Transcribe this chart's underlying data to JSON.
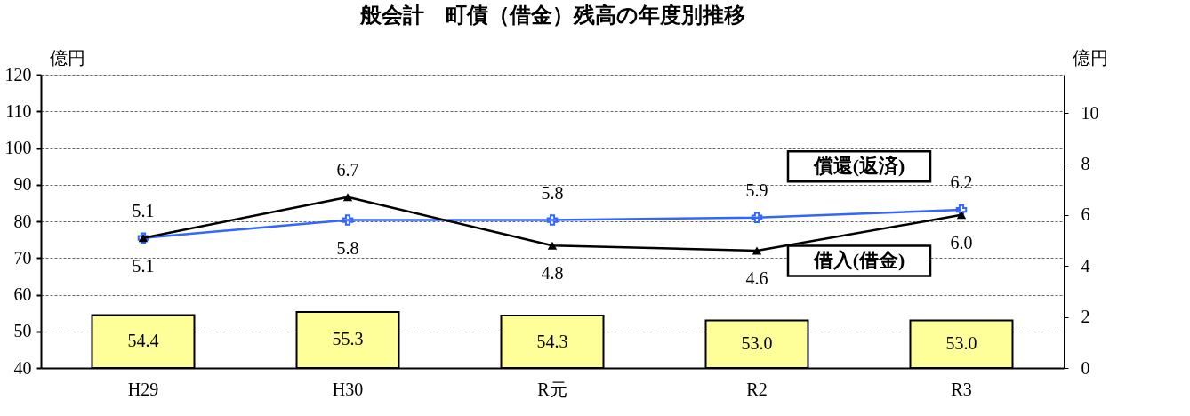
{
  "chart_data": {
    "type": "bar",
    "title": "般会計　町債（借金）残高の年度別推移",
    "ylabel": "億円",
    "y2label": "億円",
    "categories": [
      "H29",
      "H30",
      "R元",
      "R2",
      "R3"
    ],
    "series": [
      {
        "color": "#ffff99",
        "values": [
          54.4,
          55.3,
          54.3,
          53.0,
          53.0
        ],
        "value_labels": [
          "54.4",
          "55.3",
          "54.3",
          "53.0",
          "53.0"
        ]
      },
      {
        "type": "line",
        "name": "償還(返済)",
        "axis": "y2",
        "color": "#3366ff",
        "marker": "cross",
        "values": [
          5.1,
          5.8,
          5.8,
          5.9,
          6.2
        ],
        "value_labels": [
          "5.1",
          "5.8",
          "5.8",
          "5.9",
          "6.2"
        ]
      },
      {
        "type": "line",
        "name": "借入(借金)",
        "axis": "y2",
        "color": "#000000",
        "marker": "triangle",
        "values": [
          5.1,
          6.7,
          4.8,
          4.6,
          6.0
        ],
        "value_labels": [
          "5.1",
          "6.7",
          "4.8",
          "4.6",
          "6.0"
        ]
      }
    ],
    "ylim": [
      40,
      120
    ],
    "yticks": [
      40,
      50,
      60,
      70,
      80,
      90,
      100,
      110,
      120
    ],
    "y2lim": [
      0,
      11.5
    ],
    "y2ticks": [
      0,
      2,
      4,
      6,
      8,
      10
    ],
    "grid": "y",
    "line_style": "solid"
  }
}
